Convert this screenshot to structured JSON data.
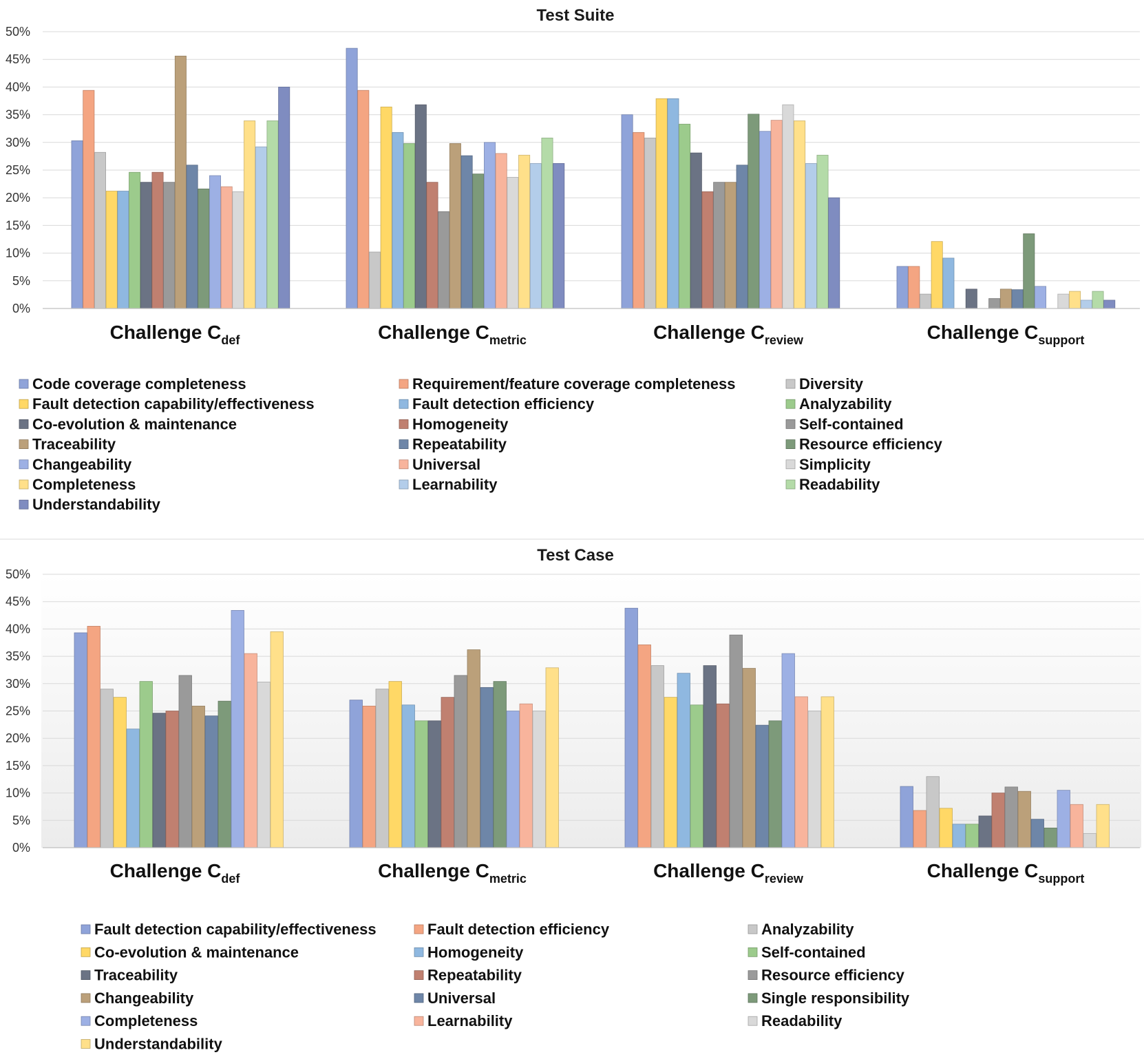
{
  "colors": {
    "series_palette": [
      "#8fa3d9",
      "#f4a582",
      "#c8c8c8",
      "#ffd866",
      "#8fb8e0",
      "#9ccb8c",
      "#6b7384",
      "#c08070",
      "#9a9a9a",
      "#bba07a",
      "#6e86a8",
      "#7d9a7a",
      "#9db0e4",
      "#f8b49c",
      "#d9d9d9",
      "#ffe08a",
      "#b3cdea",
      "#b4dba8",
      "#7f8cc0"
    ],
    "case_palette": [
      "#8fa3d9",
      "#f4a582",
      "#c8c8c8",
      "#ffd866",
      "#8fb8e0",
      "#9ccb8c",
      "#6b7384",
      "#c08070",
      "#9a9a9a",
      "#bba07a",
      "#6e86a8",
      "#7d9a7a",
      "#9db0e4",
      "#f8b49c",
      "#d9d9d9",
      "#ffe08a"
    ]
  },
  "chart_data": [
    {
      "type": "bar",
      "title": "Test Suite",
      "categories": [
        {
          "main": "Challenge C",
          "sub": "def"
        },
        {
          "main": "Challenge C",
          "sub": "metric"
        },
        {
          "main": "Challenge C",
          "sub": "review"
        },
        {
          "main": "Challenge C",
          "sub": "support"
        }
      ],
      "ylim": [
        0,
        50
      ],
      "yticks": [
        "0%",
        "5%",
        "10%",
        "15%",
        "20%",
        "25%",
        "30%",
        "35%",
        "40%",
        "45%",
        "50%"
      ],
      "series": [
        {
          "name": "Code coverage completeness",
          "values": [
            30.3,
            47,
            35,
            7.6
          ]
        },
        {
          "name": "Requirement/feature coverage completeness",
          "values": [
            39.4,
            39.4,
            31.8,
            7.6
          ]
        },
        {
          "name": "Diversity",
          "values": [
            28.2,
            10.2,
            30.8,
            2.6
          ]
        },
        {
          "name": "Fault detection capability/effectiveness",
          "values": [
            21.2,
            36.4,
            37.9,
            12.1
          ]
        },
        {
          "name": "Fault detection efficiency",
          "values": [
            21.2,
            31.8,
            37.9,
            9.1
          ]
        },
        {
          "name": "Analyzability",
          "values": [
            24.6,
            29.8,
            33.3,
            0
          ]
        },
        {
          "name": "Co-evolution & maintenance",
          "values": [
            22.8,
            36.8,
            28.1,
            3.5
          ]
        },
        {
          "name": "Homogeneity",
          "values": [
            24.6,
            22.8,
            21.1,
            0
          ]
        },
        {
          "name": "Self-contained",
          "values": [
            22.8,
            17.5,
            22.8,
            1.8
          ]
        },
        {
          "name": "Traceability",
          "values": [
            45.6,
            29.8,
            22.8,
            3.5
          ]
        },
        {
          "name": "Repeatability",
          "values": [
            25.9,
            27.6,
            25.9,
            3.4
          ]
        },
        {
          "name": "Resource efficiency",
          "values": [
            21.6,
            24.3,
            35.1,
            13.5
          ]
        },
        {
          "name": "Changeability",
          "values": [
            24,
            30,
            32,
            4
          ]
        },
        {
          "name": "Universal",
          "values": [
            22,
            28,
            34,
            0
          ]
        },
        {
          "name": "Simplicity",
          "values": [
            21.1,
            23.7,
            36.8,
            2.6
          ]
        },
        {
          "name": "Completeness",
          "values": [
            33.9,
            27.7,
            33.9,
            3.1
          ]
        },
        {
          "name": "Learnability",
          "values": [
            29.2,
            26.2,
            26.2,
            1.5
          ]
        },
        {
          "name": "Readability",
          "values": [
            33.9,
            30.8,
            27.7,
            3.1
          ]
        },
        {
          "name": "Understandability",
          "values": [
            40,
            26.2,
            20,
            1.5
          ]
        }
      ]
    },
    {
      "type": "bar",
      "title": "Test Case",
      "categories": [
        {
          "main": "Challenge C",
          "sub": "def"
        },
        {
          "main": "Challenge C",
          "sub": "metric"
        },
        {
          "main": "Challenge C",
          "sub": "review"
        },
        {
          "main": "Challenge C",
          "sub": "support"
        }
      ],
      "ylim": [
        0,
        50
      ],
      "yticks": [
        "0%",
        "5%",
        "10%",
        "15%",
        "20%",
        "25%",
        "30%",
        "35%",
        "40%",
        "45%",
        "50%"
      ],
      "series": [
        {
          "name": "Fault detection capability/effectiveness",
          "values": [
            39.3,
            27,
            43.8,
            11.2
          ]
        },
        {
          "name": "Fault detection efficiency",
          "values": [
            40.5,
            25.9,
            37.1,
            6.8
          ]
        },
        {
          "name": " Analyzability",
          "values": [
            29,
            29,
            33.3,
            13
          ]
        },
        {
          "name": "Co-evolution & maintenance",
          "values": [
            27.5,
            30.4,
            27.5,
            7.2
          ]
        },
        {
          "name": "Homogeneity",
          "values": [
            21.7,
            26.1,
            31.9,
            4.3
          ]
        },
        {
          "name": "Self-contained",
          "values": [
            30.4,
            23.2,
            26.1,
            4.3
          ]
        },
        {
          "name": "Traceability",
          "values": [
            24.6,
            23.2,
            33.3,
            5.8
          ]
        },
        {
          "name": "Repeatability",
          "values": [
            25,
            27.5,
            26.3,
            10
          ]
        },
        {
          "name": "Resource efficiency",
          "values": [
            31.5,
            31.5,
            38.9,
            11.1
          ]
        },
        {
          "name": "Changeability",
          "values": [
            25.9,
            36.2,
            32.8,
            10.3
          ]
        },
        {
          "name": "Universal",
          "values": [
            24.1,
            29.3,
            22.4,
            5.2
          ]
        },
        {
          "name": "Single responsibility",
          "values": [
            26.8,
            30.4,
            23.2,
            3.6
          ]
        },
        {
          "name": "Completeness",
          "values": [
            43.4,
            25,
            35.5,
            10.5
          ]
        },
        {
          "name": "Learnability",
          "values": [
            35.5,
            26.3,
            27.6,
            7.9
          ]
        },
        {
          "name": "Readability",
          "values": [
            30.3,
            25,
            25,
            2.6
          ]
        },
        {
          "name": "Understandability",
          "values": [
            39.5,
            32.9,
            27.6,
            7.9
          ]
        }
      ]
    }
  ]
}
